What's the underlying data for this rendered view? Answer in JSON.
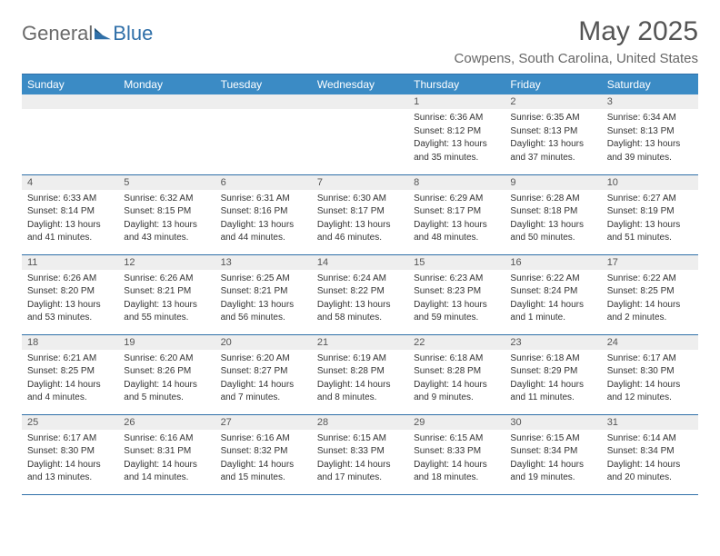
{
  "logo": {
    "part1": "General",
    "part2": "Blue"
  },
  "title": "May 2025",
  "location": "Cowpens, South Carolina, United States",
  "weekdays": [
    "Sunday",
    "Monday",
    "Tuesday",
    "Wednesday",
    "Thursday",
    "Friday",
    "Saturday"
  ],
  "colors": {
    "header_bg": "#3b8bc5",
    "header_text": "#ffffff",
    "rule": "#2f6fa8",
    "daynum_bg": "#eeeeee",
    "logo_gray": "#6a6a6a",
    "logo_blue": "#2f6fa8"
  },
  "weeks": [
    [
      null,
      null,
      null,
      null,
      {
        "n": "1",
        "sunrise": "Sunrise: 6:36 AM",
        "sunset": "Sunset: 8:12 PM",
        "day1": "Daylight: 13 hours",
        "day2": "and 35 minutes."
      },
      {
        "n": "2",
        "sunrise": "Sunrise: 6:35 AM",
        "sunset": "Sunset: 8:13 PM",
        "day1": "Daylight: 13 hours",
        "day2": "and 37 minutes."
      },
      {
        "n": "3",
        "sunrise": "Sunrise: 6:34 AM",
        "sunset": "Sunset: 8:13 PM",
        "day1": "Daylight: 13 hours",
        "day2": "and 39 minutes."
      }
    ],
    [
      {
        "n": "4",
        "sunrise": "Sunrise: 6:33 AM",
        "sunset": "Sunset: 8:14 PM",
        "day1": "Daylight: 13 hours",
        "day2": "and 41 minutes."
      },
      {
        "n": "5",
        "sunrise": "Sunrise: 6:32 AM",
        "sunset": "Sunset: 8:15 PM",
        "day1": "Daylight: 13 hours",
        "day2": "and 43 minutes."
      },
      {
        "n": "6",
        "sunrise": "Sunrise: 6:31 AM",
        "sunset": "Sunset: 8:16 PM",
        "day1": "Daylight: 13 hours",
        "day2": "and 44 minutes."
      },
      {
        "n": "7",
        "sunrise": "Sunrise: 6:30 AM",
        "sunset": "Sunset: 8:17 PM",
        "day1": "Daylight: 13 hours",
        "day2": "and 46 minutes."
      },
      {
        "n": "8",
        "sunrise": "Sunrise: 6:29 AM",
        "sunset": "Sunset: 8:17 PM",
        "day1": "Daylight: 13 hours",
        "day2": "and 48 minutes."
      },
      {
        "n": "9",
        "sunrise": "Sunrise: 6:28 AM",
        "sunset": "Sunset: 8:18 PM",
        "day1": "Daylight: 13 hours",
        "day2": "and 50 minutes."
      },
      {
        "n": "10",
        "sunrise": "Sunrise: 6:27 AM",
        "sunset": "Sunset: 8:19 PM",
        "day1": "Daylight: 13 hours",
        "day2": "and 51 minutes."
      }
    ],
    [
      {
        "n": "11",
        "sunrise": "Sunrise: 6:26 AM",
        "sunset": "Sunset: 8:20 PM",
        "day1": "Daylight: 13 hours",
        "day2": "and 53 minutes."
      },
      {
        "n": "12",
        "sunrise": "Sunrise: 6:26 AM",
        "sunset": "Sunset: 8:21 PM",
        "day1": "Daylight: 13 hours",
        "day2": "and 55 minutes."
      },
      {
        "n": "13",
        "sunrise": "Sunrise: 6:25 AM",
        "sunset": "Sunset: 8:21 PM",
        "day1": "Daylight: 13 hours",
        "day2": "and 56 minutes."
      },
      {
        "n": "14",
        "sunrise": "Sunrise: 6:24 AM",
        "sunset": "Sunset: 8:22 PM",
        "day1": "Daylight: 13 hours",
        "day2": "and 58 minutes."
      },
      {
        "n": "15",
        "sunrise": "Sunrise: 6:23 AM",
        "sunset": "Sunset: 8:23 PM",
        "day1": "Daylight: 13 hours",
        "day2": "and 59 minutes."
      },
      {
        "n": "16",
        "sunrise": "Sunrise: 6:22 AM",
        "sunset": "Sunset: 8:24 PM",
        "day1": "Daylight: 14 hours",
        "day2": "and 1 minute."
      },
      {
        "n": "17",
        "sunrise": "Sunrise: 6:22 AM",
        "sunset": "Sunset: 8:25 PM",
        "day1": "Daylight: 14 hours",
        "day2": "and 2 minutes."
      }
    ],
    [
      {
        "n": "18",
        "sunrise": "Sunrise: 6:21 AM",
        "sunset": "Sunset: 8:25 PM",
        "day1": "Daylight: 14 hours",
        "day2": "and 4 minutes."
      },
      {
        "n": "19",
        "sunrise": "Sunrise: 6:20 AM",
        "sunset": "Sunset: 8:26 PM",
        "day1": "Daylight: 14 hours",
        "day2": "and 5 minutes."
      },
      {
        "n": "20",
        "sunrise": "Sunrise: 6:20 AM",
        "sunset": "Sunset: 8:27 PM",
        "day1": "Daylight: 14 hours",
        "day2": "and 7 minutes."
      },
      {
        "n": "21",
        "sunrise": "Sunrise: 6:19 AM",
        "sunset": "Sunset: 8:28 PM",
        "day1": "Daylight: 14 hours",
        "day2": "and 8 minutes."
      },
      {
        "n": "22",
        "sunrise": "Sunrise: 6:18 AM",
        "sunset": "Sunset: 8:28 PM",
        "day1": "Daylight: 14 hours",
        "day2": "and 9 minutes."
      },
      {
        "n": "23",
        "sunrise": "Sunrise: 6:18 AM",
        "sunset": "Sunset: 8:29 PM",
        "day1": "Daylight: 14 hours",
        "day2": "and 11 minutes."
      },
      {
        "n": "24",
        "sunrise": "Sunrise: 6:17 AM",
        "sunset": "Sunset: 8:30 PM",
        "day1": "Daylight: 14 hours",
        "day2": "and 12 minutes."
      }
    ],
    [
      {
        "n": "25",
        "sunrise": "Sunrise: 6:17 AM",
        "sunset": "Sunset: 8:30 PM",
        "day1": "Daylight: 14 hours",
        "day2": "and 13 minutes."
      },
      {
        "n": "26",
        "sunrise": "Sunrise: 6:16 AM",
        "sunset": "Sunset: 8:31 PM",
        "day1": "Daylight: 14 hours",
        "day2": "and 14 minutes."
      },
      {
        "n": "27",
        "sunrise": "Sunrise: 6:16 AM",
        "sunset": "Sunset: 8:32 PM",
        "day1": "Daylight: 14 hours",
        "day2": "and 15 minutes."
      },
      {
        "n": "28",
        "sunrise": "Sunrise: 6:15 AM",
        "sunset": "Sunset: 8:33 PM",
        "day1": "Daylight: 14 hours",
        "day2": "and 17 minutes."
      },
      {
        "n": "29",
        "sunrise": "Sunrise: 6:15 AM",
        "sunset": "Sunset: 8:33 PM",
        "day1": "Daylight: 14 hours",
        "day2": "and 18 minutes."
      },
      {
        "n": "30",
        "sunrise": "Sunrise: 6:15 AM",
        "sunset": "Sunset: 8:34 PM",
        "day1": "Daylight: 14 hours",
        "day2": "and 19 minutes."
      },
      {
        "n": "31",
        "sunrise": "Sunrise: 6:14 AM",
        "sunset": "Sunset: 8:34 PM",
        "day1": "Daylight: 14 hours",
        "day2": "and 20 minutes."
      }
    ]
  ]
}
